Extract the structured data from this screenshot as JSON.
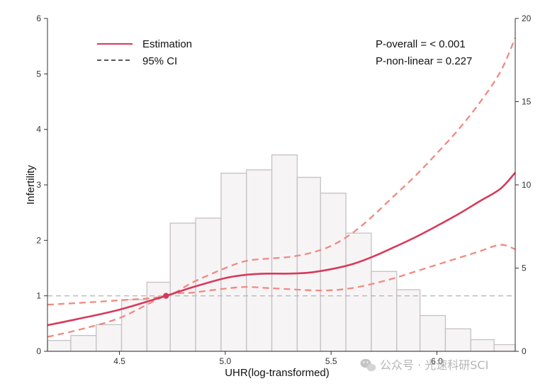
{
  "chart_data": {
    "type": "line",
    "xlabel": "UHR(log-transformed)",
    "ylabel": "Infertility",
    "xlim": [
      4.16,
      6.37
    ],
    "ylim": [
      0,
      6
    ],
    "y2lim": [
      0,
      20
    ],
    "x_ticks": [
      4.5,
      5.0,
      5.5,
      6.0
    ],
    "x_tick_labels": [
      "4.5",
      "5.0",
      "5.5",
      "6.0"
    ],
    "y_ticks": [
      0,
      1,
      2,
      3,
      4,
      5,
      6
    ],
    "y_tick_labels": [
      "0",
      "1",
      "2",
      "3",
      "4",
      "5",
      "6"
    ],
    "y2_ticks": [
      0,
      5,
      10,
      15,
      20
    ],
    "y2_tick_labels": [
      "0",
      "5",
      "10",
      "15",
      "20"
    ],
    "reference_line_y": 1,
    "reference_point": {
      "x": 4.72,
      "y": 1.0
    },
    "legend": {
      "position": "top-left",
      "items": [
        {
          "label": "Estimation",
          "style": "solid",
          "color": "#d63a5a"
        },
        {
          "label": "95% CI",
          "style": "dashed",
          "color": "#222222"
        }
      ]
    },
    "annotations": [
      "P-overall = < 0.001",
      "P-non-linear = 0.227"
    ],
    "histogram": {
      "axis": "right",
      "bins": [
        {
          "x0": 4.16,
          "x1": 4.27,
          "count": 0.65
        },
        {
          "x0": 4.27,
          "x1": 4.39,
          "count": 0.95
        },
        {
          "x0": 4.39,
          "x1": 4.51,
          "count": 1.6
        },
        {
          "x0": 4.51,
          "x1": 4.63,
          "count": 3.1
        },
        {
          "x0": 4.63,
          "x1": 4.74,
          "count": 4.15
        },
        {
          "x0": 4.74,
          "x1": 4.86,
          "count": 7.7
        },
        {
          "x0": 4.86,
          "x1": 4.98,
          "count": 8.0
        },
        {
          "x0": 4.98,
          "x1": 5.1,
          "count": 10.7
        },
        {
          "x0": 5.1,
          "x1": 5.22,
          "count": 10.9
        },
        {
          "x0": 5.22,
          "x1": 5.34,
          "count": 11.8
        },
        {
          "x0": 5.34,
          "x1": 5.45,
          "count": 10.45
        },
        {
          "x0": 5.45,
          "x1": 5.57,
          "count": 9.5
        },
        {
          "x0": 5.57,
          "x1": 5.69,
          "count": 7.1
        },
        {
          "x0": 5.69,
          "x1": 5.81,
          "count": 4.8
        },
        {
          "x0": 5.81,
          "x1": 5.92,
          "count": 3.7
        },
        {
          "x0": 5.92,
          "x1": 6.04,
          "count": 2.15
        },
        {
          "x0": 6.04,
          "x1": 6.16,
          "count": 1.35
        },
        {
          "x0": 6.16,
          "x1": 6.27,
          "count": 0.7
        },
        {
          "x0": 6.27,
          "x1": 6.37,
          "count": 0.4
        }
      ]
    },
    "series": [
      {
        "name": "Estimation",
        "color": "#d63a5a",
        "style": "solid",
        "x": [
          4.16,
          4.3,
          4.5,
          4.72,
          4.85,
          5.0,
          5.1,
          5.2,
          5.3,
          5.4,
          5.5,
          5.6,
          5.7,
          5.8,
          5.9,
          6.0,
          6.1,
          6.2,
          6.3,
          6.37
        ],
        "y": [
          0.47,
          0.58,
          0.75,
          1.0,
          1.16,
          1.32,
          1.38,
          1.4,
          1.4,
          1.42,
          1.48,
          1.57,
          1.71,
          1.88,
          2.06,
          2.26,
          2.47,
          2.7,
          2.93,
          3.22
        ]
      },
      {
        "name": "95% CI upper",
        "color": "#f08a80",
        "style": "dashed",
        "x": [
          4.16,
          4.3,
          4.5,
          4.72,
          4.85,
          5.0,
          5.1,
          5.2,
          5.3,
          5.4,
          5.5,
          5.6,
          5.7,
          5.8,
          5.9,
          6.0,
          6.1,
          6.2,
          6.3,
          6.37
        ],
        "y": [
          0.84,
          0.87,
          0.92,
          1.0,
          1.25,
          1.5,
          1.63,
          1.67,
          1.7,
          1.77,
          1.9,
          2.13,
          2.45,
          2.81,
          3.17,
          3.57,
          3.99,
          4.47,
          5.04,
          5.65
        ]
      },
      {
        "name": "95% CI lower",
        "color": "#f08a80",
        "style": "dashed",
        "x": [
          4.16,
          4.3,
          4.5,
          4.72,
          4.85,
          5.0,
          5.1,
          5.2,
          5.3,
          5.4,
          5.5,
          5.6,
          5.7,
          5.8,
          5.9,
          6.0,
          6.1,
          6.2,
          6.3,
          6.37
        ],
        "y": [
          0.26,
          0.38,
          0.6,
          1.0,
          1.06,
          1.13,
          1.16,
          1.14,
          1.12,
          1.1,
          1.1,
          1.14,
          1.22,
          1.32,
          1.44,
          1.56,
          1.68,
          1.8,
          1.92,
          1.84
        ]
      }
    ]
  },
  "watermark": {
    "text": "公众号 · 光速科研SCI",
    "icon": "wechat-icon"
  }
}
